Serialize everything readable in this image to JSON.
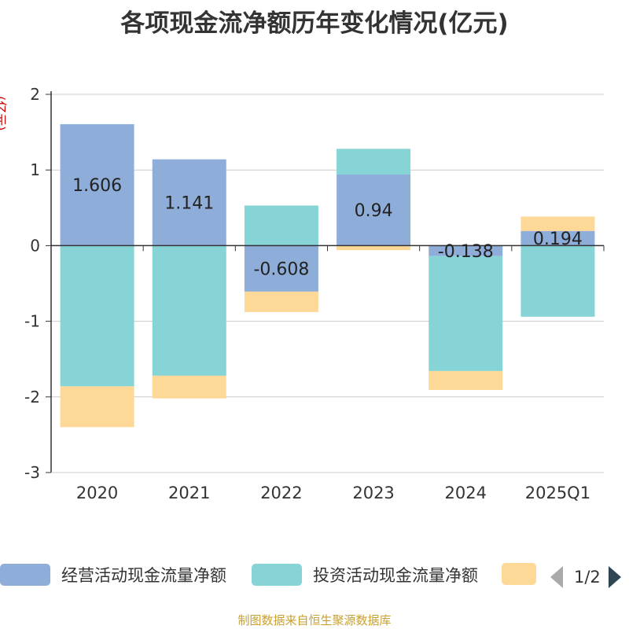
{
  "chart_data": {
    "type": "bar",
    "stacked": true,
    "title": "各项现金流净额历年变化情况(亿元)",
    "ylabel": "(亿元)",
    "ylim": [
      -3,
      2
    ],
    "yticks": [
      "2",
      "1",
      "0",
      "-1",
      "-2",
      "-3"
    ],
    "categories": [
      "2020",
      "2021",
      "2022",
      "2023",
      "2024",
      "2025Q1"
    ],
    "series": [
      {
        "name": "经营活动现金流量净额",
        "color": "#8eadd9",
        "values": [
          1.606,
          1.141,
          -0.608,
          0.94,
          -0.138,
          0.194
        ]
      },
      {
        "name": "投资活动现金流量净额",
        "color": "#86d4d6",
        "values": [
          -1.86,
          -1.72,
          0.53,
          0.34,
          -1.52,
          -0.94
        ]
      },
      {
        "name": "",
        "color": "#fdd897",
        "values": [
          -0.54,
          -0.3,
          -0.27,
          -0.06,
          -0.25,
          0.19
        ]
      }
    ],
    "data_labels": [
      "1.606",
      "1.141",
      "-0.608",
      "0.94",
      "-0.138",
      "0.194"
    ],
    "legend_position": "bottom"
  },
  "legend": {
    "pager": "1/2"
  },
  "source": "制图数据来自恒生聚源数据库"
}
